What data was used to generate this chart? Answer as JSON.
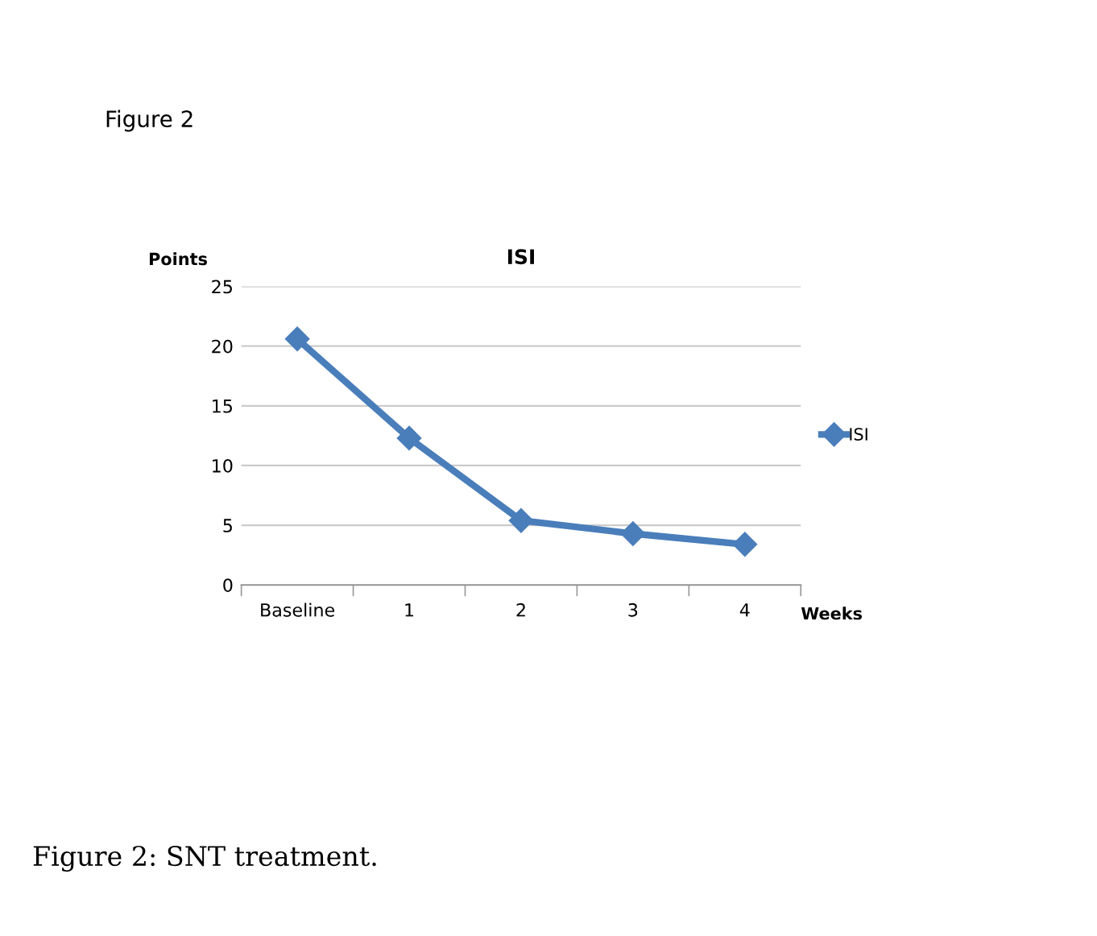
{
  "chart_data": {
    "type": "line",
    "title": "ISI",
    "ylabel": "Points",
    "xlabel": "Weeks",
    "categories": [
      "Baseline",
      "1",
      "2",
      "3",
      "4"
    ],
    "series": [
      {
        "name": "ISI",
        "color": "#4a7ebb",
        "values": [
          20.6,
          12.3,
          5.4,
          4.3,
          3.4
        ]
      }
    ],
    "ylim": [
      0,
      25
    ],
    "yticks": [
      0,
      5,
      10,
      15,
      20,
      25
    ],
    "grid": "y",
    "legend": "right",
    "marker": "diamond",
    "line_style": "solid",
    "annotations": [
      "Figure 2",
      "Figure 2: SNT treatment."
    ]
  }
}
